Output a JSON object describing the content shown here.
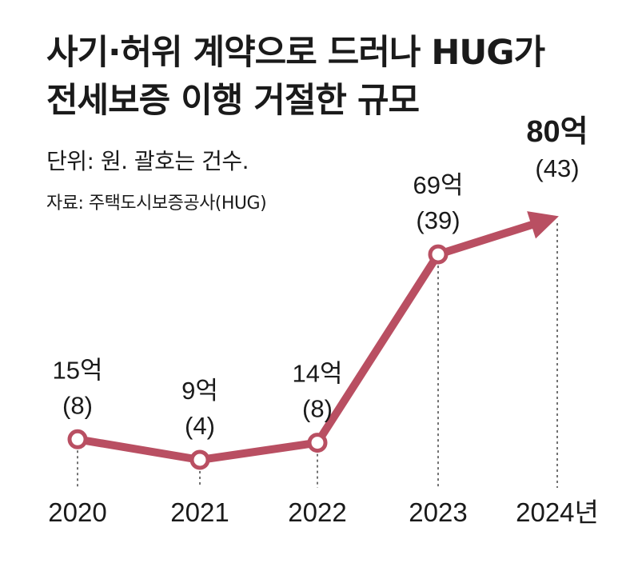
{
  "header": {
    "title_line1": "사기·허위 계약으로 드러나 HUG가",
    "title_line2": "전세보증 이행 거절한 규모",
    "unit": "단위: 원. 괄호는 건수.",
    "source": "자료: 주택도시보증공사(HUG)"
  },
  "colors": {
    "line": "#b94f62",
    "text": "#1a1a1a",
    "guide": "#444444"
  },
  "chart_data": {
    "type": "line",
    "title": "사기·허위 계약으로 드러나 HUG가 전세보증 이행 거절한 규모",
    "unit": "단위: 원. 괄호는 건수.",
    "x": [
      "2020",
      "2021",
      "2022",
      "2023",
      "2024년"
    ],
    "values": [
      15,
      9,
      14,
      69,
      80
    ],
    "counts": [
      8,
      4,
      8,
      39,
      43
    ],
    "value_labels": [
      "15억",
      "9억",
      "14억",
      "69억",
      "80억"
    ],
    "count_labels": [
      "(8)",
      "(4)",
      "(8)",
      "(39)",
      "(43)"
    ],
    "last_point": "arrow",
    "grid": false
  }
}
